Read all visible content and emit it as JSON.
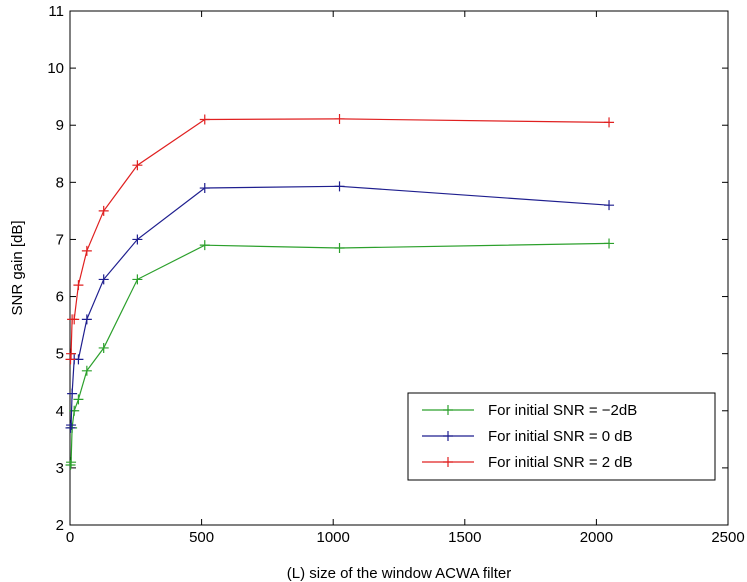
{
  "chart_data": {
    "type": "line",
    "xlabel": "(L) size of the window ACWA filter",
    "ylabel": "SNR gain [dB]",
    "xlim": [
      0,
      2500
    ],
    "ylim": [
      2,
      11
    ],
    "xticks": [
      0,
      500,
      1000,
      1500,
      2000,
      2500
    ],
    "yticks": [
      2,
      3,
      4,
      5,
      6,
      7,
      8,
      9,
      10,
      11
    ],
    "grid": false,
    "legend_position": "bottom-right",
    "series": [
      {
        "name": "For initial SNR = −2dB",
        "color": "#2ca02c",
        "x": [
          2,
          4,
          8,
          16,
          32,
          64,
          128,
          256,
          512,
          1024,
          2048
        ],
        "y": [
          3.05,
          3.1,
          3.7,
          4.0,
          4.2,
          4.7,
          5.1,
          6.3,
          6.9,
          6.85,
          6.93
        ]
      },
      {
        "name": "For initial SNR = 0 dB",
        "color": "#1f1f8f",
        "x": [
          2,
          4,
          8,
          16,
          32,
          64,
          128,
          256,
          512,
          1024,
          2048
        ],
        "y": [
          3.7,
          3.75,
          4.3,
          4.9,
          4.9,
          5.6,
          6.3,
          7.0,
          7.9,
          7.93,
          7.6
        ]
      },
      {
        "name": "For initial SNR = 2 dB",
        "color": "#e02020",
        "x": [
          2,
          4,
          8,
          16,
          32,
          64,
          128,
          256,
          512,
          1024,
          2048
        ],
        "y": [
          4.9,
          5.0,
          5.6,
          5.6,
          6.2,
          6.8,
          7.5,
          8.3,
          9.1,
          9.11,
          9.05
        ]
      }
    ]
  }
}
